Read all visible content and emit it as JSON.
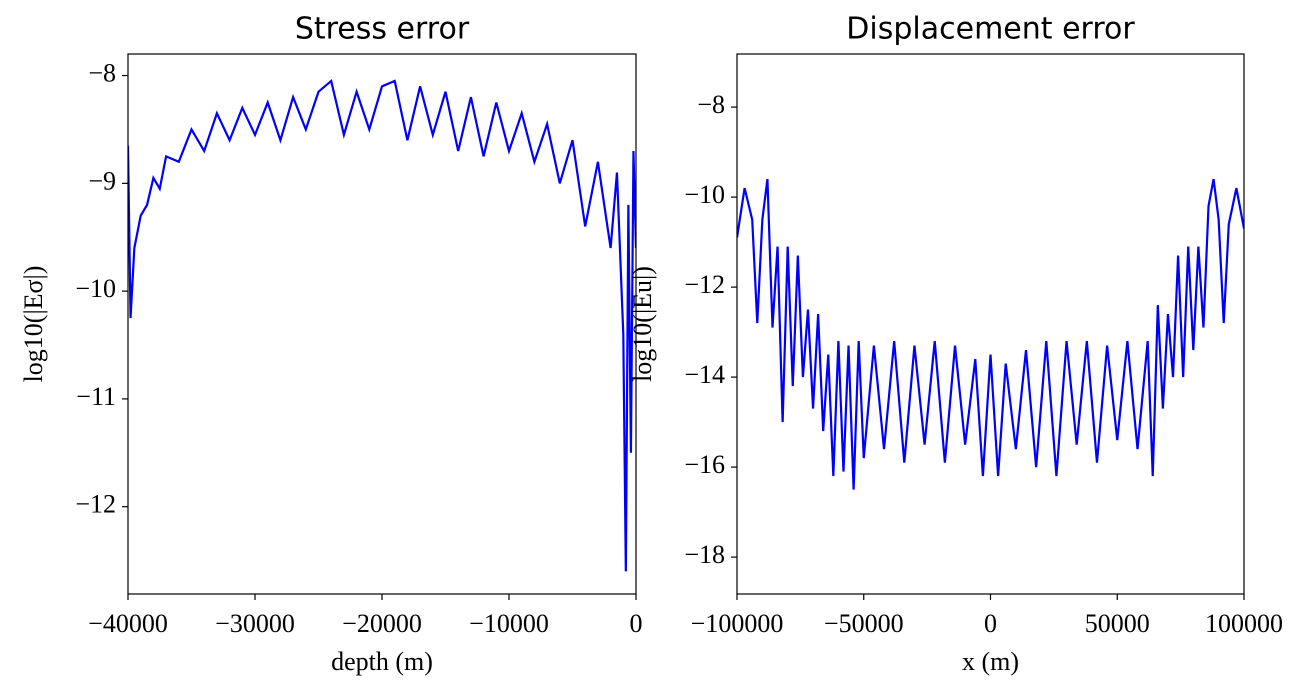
{
  "chart_data": [
    {
      "type": "line",
      "title": "Stress error",
      "xlabel": "depth  (m)",
      "ylabel": "log10(|Eσ|)",
      "xlim": [
        -40000,
        0
      ],
      "ylim": [
        -12.81,
        -7.8
      ],
      "xticks": [
        {
          "value": -40000,
          "label": "−40000"
        },
        {
          "value": -30000,
          "label": "−30000"
        },
        {
          "value": -20000,
          "label": "−20000"
        },
        {
          "value": -10000,
          "label": "−10000"
        },
        0
      ],
      "yticks": [
        {
          "value": -8,
          "label": "−8"
        },
        {
          "value": -9,
          "label": "−9"
        },
        {
          "value": -10,
          "label": "−10"
        },
        {
          "value": -11,
          "label": "−11"
        },
        {
          "value": -12,
          "label": "−12"
        }
      ],
      "series": [
        {
          "color": "#0000ff",
          "x": [
            -40000,
            -39800,
            -39500,
            -39000,
            -38500,
            -38000,
            -37500,
            -37000,
            -36000,
            -35000,
            -34000,
            -33000,
            -32000,
            -31000,
            -30000,
            -29000,
            -28000,
            -27000,
            -26000,
            -25000,
            -24000,
            -23000,
            -22000,
            -21000,
            -20000,
            -19000,
            -18000,
            -17000,
            -16000,
            -15000,
            -14000,
            -13000,
            -12000,
            -11000,
            -10000,
            -9000,
            -8000,
            -7000,
            -6000,
            -5000,
            -4000,
            -3000,
            -2000,
            -1500,
            -1000,
            -800,
            -600,
            -400,
            -200,
            0
          ],
          "values": [
            -8.65,
            -10.25,
            -9.6,
            -9.3,
            -9.2,
            -8.95,
            -9.05,
            -8.75,
            -8.8,
            -8.5,
            -8.7,
            -8.35,
            -8.6,
            -8.3,
            -8.55,
            -8.25,
            -8.6,
            -8.2,
            -8.5,
            -8.15,
            -8.05,
            -8.55,
            -8.15,
            -8.5,
            -8.1,
            -8.05,
            -8.6,
            -8.1,
            -8.55,
            -8.15,
            -8.7,
            -8.2,
            -8.75,
            -8.25,
            -8.7,
            -8.35,
            -8.8,
            -8.45,
            -9.0,
            -8.6,
            -9.4,
            -8.8,
            -9.6,
            -8.9,
            -10.4,
            -12.6,
            -9.2,
            -11.5,
            -8.7,
            -9.6
          ]
        }
      ]
    },
    {
      "type": "line",
      "title": "Displacement error",
      "xlabel": "x  (m)",
      "ylabel": "log10(|Eu|)",
      "xlim": [
        -100000,
        100000
      ],
      "ylim": [
        -18.82,
        -6.82
      ],
      "xticks": [
        {
          "value": -100000,
          "label": "−100000"
        },
        {
          "value": -50000,
          "label": "−50000"
        },
        0,
        50000,
        100000
      ],
      "yticks": [
        {
          "value": -8,
          "label": "−8"
        },
        {
          "value": -10,
          "label": "−10"
        },
        {
          "value": -12,
          "label": "−12"
        },
        {
          "value": -14,
          "label": "−14"
        },
        {
          "value": -16,
          "label": "−16"
        },
        {
          "value": -18,
          "label": "−18"
        }
      ],
      "series": [
        {
          "color": "#0000ff",
          "x": [
            -100000,
            -97000,
            -94000,
            -92000,
            -90000,
            -88000,
            -86000,
            -84000,
            -82000,
            -80000,
            -78000,
            -76000,
            -74000,
            -72000,
            -70000,
            -68000,
            -66000,
            -64000,
            -62000,
            -60000,
            -58000,
            -56000,
            -54000,
            -52000,
            -50000,
            -46000,
            -42000,
            -38000,
            -34000,
            -30000,
            -26000,
            -22000,
            -18000,
            -14000,
            -10000,
            -6000,
            -3000,
            0,
            3000,
            6000,
            10000,
            14000,
            18000,
            22000,
            26000,
            30000,
            34000,
            38000,
            42000,
            46000,
            50000,
            54000,
            58000,
            62000,
            64000,
            66000,
            68000,
            70000,
            72000,
            74000,
            76000,
            78000,
            80000,
            82000,
            84000,
            86000,
            88000,
            90000,
            92000,
            94000,
            97000,
            100000
          ],
          "values": [
            -10.9,
            -9.8,
            -10.5,
            -12.8,
            -10.5,
            -9.6,
            -12.9,
            -11.1,
            -15.0,
            -11.1,
            -14.2,
            -11.3,
            -14.0,
            -12.5,
            -14.7,
            -12.6,
            -15.2,
            -13.5,
            -16.2,
            -13.2,
            -16.1,
            -13.3,
            -16.5,
            -13.2,
            -15.8,
            -13.3,
            -15.6,
            -13.2,
            -15.9,
            -13.3,
            -15.5,
            -13.2,
            -15.9,
            -13.3,
            -15.5,
            -13.6,
            -16.2,
            -13.5,
            -16.2,
            -13.7,
            -15.6,
            -13.4,
            -16.0,
            -13.2,
            -16.2,
            -13.2,
            -15.5,
            -13.2,
            -15.9,
            -13.3,
            -15.4,
            -13.2,
            -15.6,
            -13.2,
            -16.2,
            -12.4,
            -14.7,
            -12.6,
            -14.0,
            -11.3,
            -14.0,
            -11.1,
            -13.4,
            -11.1,
            -12.9,
            -10.2,
            -9.6,
            -10.5,
            -12.8,
            -10.6,
            -9.8,
            -10.7
          ]
        }
      ]
    }
  ]
}
